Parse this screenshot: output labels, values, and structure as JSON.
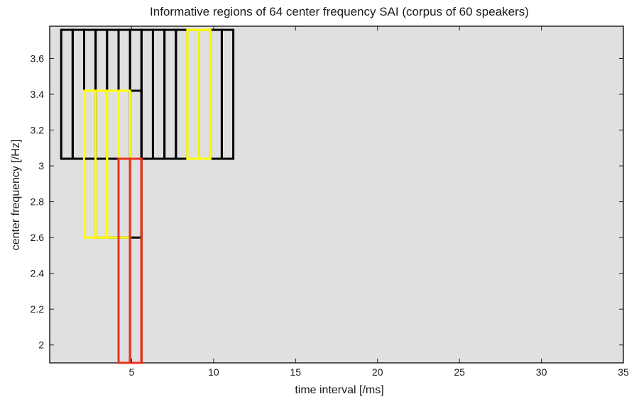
{
  "chart_data": {
    "type": "scatter",
    "title": "Informative regions of 64 center frequency SAI (corpus of 60 speakers)",
    "xlabel": "time interval [/ms]",
    "ylabel": "center frequency [/Hz]",
    "xlim": [
      0,
      35
    ],
    "ylim": [
      1.9,
      3.78
    ],
    "x_ticks": [
      5,
      10,
      15,
      20,
      25,
      30,
      35
    ],
    "y_ticks": [
      2,
      2.2,
      2.4,
      2.6,
      2.8,
      3,
      3.2,
      3.4,
      3.6
    ],
    "x_tick_labels": [
      "5",
      "10",
      "15",
      "20",
      "25",
      "30",
      "35"
    ],
    "y_tick_labels": [
      "2",
      "2.2",
      "2.4",
      "2.6",
      "2.8",
      "3",
      "3.2",
      "3.4",
      "3.6"
    ],
    "grid": false,
    "background_color": "#e0e0e0",
    "regions": [
      {
        "x0": 0.7,
        "x1": 1.4,
        "y0": 3.04,
        "y1": 3.76,
        "color": "#000000"
      },
      {
        "x0": 1.4,
        "x1": 2.1,
        "y0": 3.04,
        "y1": 3.76,
        "color": "#000000"
      },
      {
        "x0": 2.1,
        "x1": 2.8,
        "y0": 3.04,
        "y1": 3.76,
        "color": "#000000"
      },
      {
        "x0": 2.8,
        "x1": 3.5,
        "y0": 3.04,
        "y1": 3.76,
        "color": "#000000"
      },
      {
        "x0": 3.5,
        "x1": 4.2,
        "y0": 3.04,
        "y1": 3.76,
        "color": "#000000"
      },
      {
        "x0": 4.2,
        "x1": 4.9,
        "y0": 3.04,
        "y1": 3.76,
        "color": "#000000"
      },
      {
        "x0": 4.9,
        "x1": 5.6,
        "y0": 3.04,
        "y1": 3.76,
        "color": "#000000"
      },
      {
        "x0": 5.6,
        "x1": 6.3,
        "y0": 3.04,
        "y1": 3.76,
        "color": "#000000"
      },
      {
        "x0": 6.3,
        "x1": 7.0,
        "y0": 3.04,
        "y1": 3.76,
        "color": "#000000"
      },
      {
        "x0": 7.0,
        "x1": 7.7,
        "y0": 3.04,
        "y1": 3.76,
        "color": "#000000"
      },
      {
        "x0": 7.7,
        "x1": 8.4,
        "y0": 3.04,
        "y1": 3.76,
        "color": "#000000"
      },
      {
        "x0": 8.4,
        "x1": 9.1,
        "y0": 3.04,
        "y1": 3.76,
        "color": "#000000"
      },
      {
        "x0": 9.1,
        "x1": 9.8,
        "y0": 3.04,
        "y1": 3.76,
        "color": "#000000"
      },
      {
        "x0": 9.8,
        "x1": 10.5,
        "y0": 3.04,
        "y1": 3.76,
        "color": "#000000"
      },
      {
        "x0": 10.5,
        "x1": 11.2,
        "y0": 3.04,
        "y1": 3.76,
        "color": "#000000"
      },
      {
        "x0": 2.8,
        "x1": 5.6,
        "y0": 2.6,
        "y1": 3.42,
        "color": "#000000"
      },
      {
        "x0": 4.9,
        "x1": 5.6,
        "y0": 1.9,
        "y1": 3.04,
        "color": "#000000"
      },
      {
        "x0": 8.4,
        "x1": 9.8,
        "y0": 3.04,
        "y1": 3.76,
        "color": "#ffff00"
      },
      {
        "x0": 8.4,
        "x1": 9.1,
        "y0": 3.04,
        "y1": 3.76,
        "color": "#ffff00"
      },
      {
        "x0": 9.1,
        "x1": 9.8,
        "y0": 3.04,
        "y1": 3.76,
        "color": "#ffff00"
      },
      {
        "x0": 2.1,
        "x1": 3.5,
        "y0": 2.6,
        "y1": 3.42,
        "color": "#ffff00"
      },
      {
        "x0": 2.8,
        "x1": 3.5,
        "y0": 2.6,
        "y1": 3.42,
        "color": "#ffff00"
      },
      {
        "x0": 3.5,
        "x1": 4.2,
        "y0": 2.6,
        "y1": 3.42,
        "color": "#ffff00"
      },
      {
        "x0": 4.2,
        "x1": 4.9,
        "y0": 2.6,
        "y1": 3.42,
        "color": "#ffff00"
      },
      {
        "x0": 4.2,
        "x1": 4.9,
        "y0": 1.9,
        "y1": 3.04,
        "color": "#e8341c"
      },
      {
        "x0": 4.9,
        "x1": 5.6,
        "y0": 1.9,
        "y1": 3.04,
        "color": "#e8341c"
      },
      {
        "x0": 4.2,
        "x1": 5.6,
        "y0": 1.9,
        "y1": 3.04,
        "color": "#e8341c"
      }
    ]
  }
}
